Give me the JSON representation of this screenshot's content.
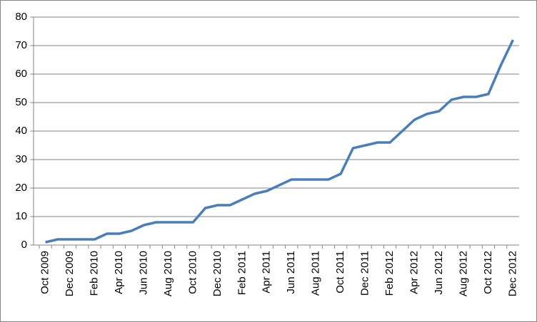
{
  "chart_data": {
    "type": "line",
    "categories": [
      "Oct 2009",
      null,
      "Dec 2009",
      null,
      "Feb 2010",
      null,
      "Apr 2010",
      null,
      "Jun 2010",
      null,
      "Aug 2010",
      null,
      "Oct 2010",
      null,
      "Dec 2010",
      null,
      "Feb 2011",
      null,
      "Apr 2011",
      null,
      "Jun 2011",
      null,
      "Aug 2011",
      null,
      "Oct 2011",
      null,
      "Dec 2011",
      null,
      "Feb 2012",
      null,
      "Apr 2012",
      null,
      "Jun 2012",
      null,
      "Aug 2012",
      null,
      "Oct 2012",
      null,
      "Dec 2012"
    ],
    "values": [
      1,
      2,
      2,
      2,
      2,
      4,
      4,
      5,
      7,
      8,
      8,
      8,
      8,
      13,
      14,
      14,
      16,
      18,
      19,
      21,
      23,
      23,
      23,
      23,
      25,
      34,
      35,
      36,
      36,
      40,
      44,
      46,
      47,
      51,
      52,
      52,
      53,
      63,
      72
    ],
    "color": "#4a7ebb",
    "ylim": [
      0,
      80
    ],
    "yticks": [
      0,
      10,
      20,
      30,
      40,
      50,
      60,
      70,
      80
    ],
    "grid": true
  }
}
